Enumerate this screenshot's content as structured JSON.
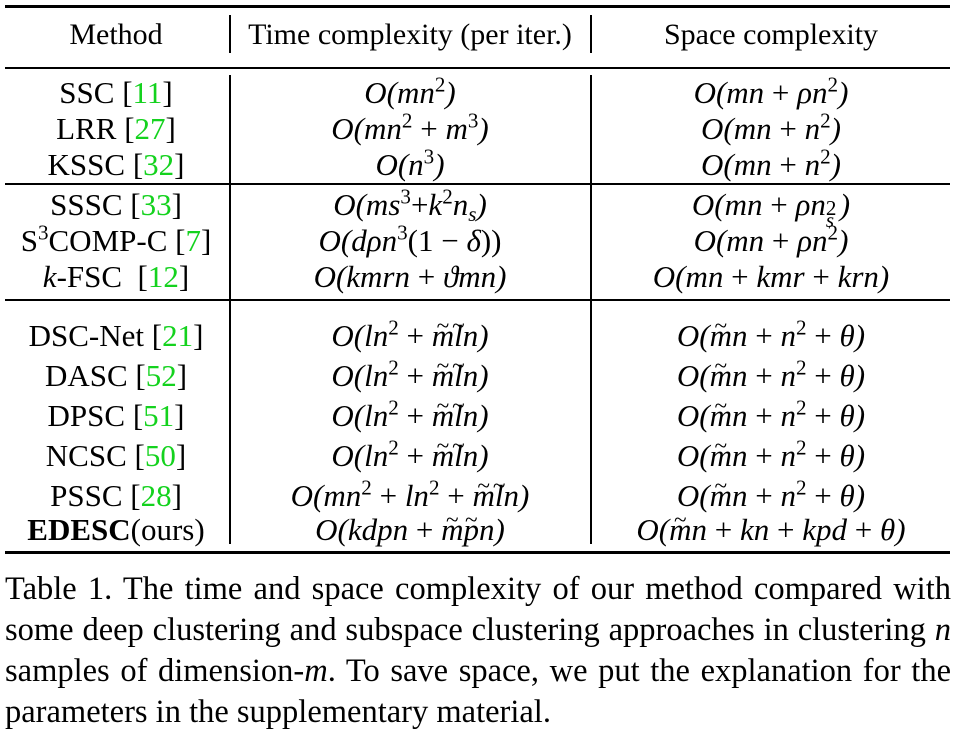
{
  "table": {
    "headers": {
      "method": "Method",
      "time": "Time complexity (per iter.)",
      "space": "Space complexity"
    },
    "groups": [
      [
        {
          "name": "SSC",
          "ref": "11",
          "time": "O(mn²)",
          "space": "O(mn + ρn²)"
        },
        {
          "name": "LRR",
          "ref": "27",
          "time": "O(mn² + m³)",
          "space": "O(mn + n²)"
        },
        {
          "name": "KSSC",
          "ref": "32",
          "time": "O(n³)",
          "space": "O(mn + n²)"
        }
      ],
      [
        {
          "name": "SSSC",
          "ref": "33",
          "time": "O(ms³+k²nₛ)",
          "space": "O(mn + ρnₛ²)"
        },
        {
          "name": "S³COMP-C",
          "ref": "7",
          "time": "O(dρn³(1 − δ))",
          "space": "O(mn + ρn²)"
        },
        {
          "name": "k-FSC",
          "ref": "12",
          "time": "O(kmrn + ϑmn)",
          "space": "O(mn + kmr + krn)"
        }
      ],
      [
        {
          "name": "DSC-Net",
          "ref": "21",
          "time": "O(ln² + m̃l̃n)",
          "space": "O(m̃n + n² + θ)"
        },
        {
          "name": "DASC",
          "ref": "52",
          "time": "O(ln² + m̃l̃n)",
          "space": "O(m̃n + n² + θ)"
        },
        {
          "name": "DPSC",
          "ref": "51",
          "time": "O(ln² + m̃l̃n)",
          "space": "O(m̃n + n² + θ)"
        },
        {
          "name": "NCSC",
          "ref": "50",
          "time": "O(ln² + m̃l̃n)",
          "space": "O(m̃n + n² + θ)"
        },
        {
          "name": "PSSC",
          "ref": "28",
          "time": "O(mn² + ln² + m̃l̃n)",
          "space": "O(m̃n + n² + θ)"
        },
        {
          "name": "EDESC",
          "suffix": "(ours)",
          "time": "O(kdpn + m̃p̃n)",
          "space": "O(m̃n + kn + kpd + θ)"
        }
      ]
    ]
  },
  "caption": "Table 1. The time and space complexity of our method compared with some deep clustering and subspace clustering approaches in clustering n samples of dimension-m. To save space, we put the explanation for the parameters in the supplementary material.",
  "caption_parts": {
    "part1": "Table 1. The time and space complexity of our method compared with some deep clustering and subspace clustering approaches in clustering ",
    "n": "n",
    "part2": " samples of dimension-",
    "m": "m",
    "part3": ". To save space, we put the explanation for the parameters in the supplementary material."
  }
}
